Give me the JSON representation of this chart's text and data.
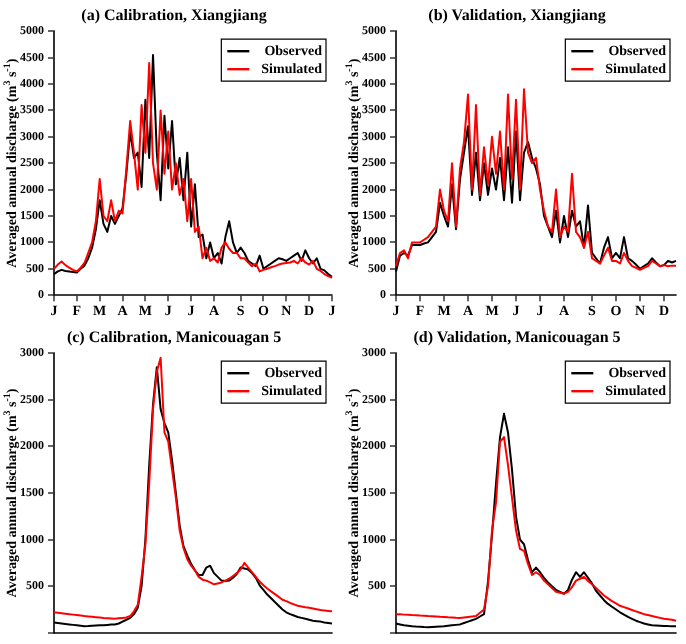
{
  "chart_data": [
    {
      "type": "line",
      "title": "(a) Calibration, Xiangjiang",
      "ylabel": "Averaged annual discharge (m$^{3}$ s$^{-1}$)",
      "legend": "top right",
      "categories": [
        "J",
        null,
        null,
        null,
        null,
        null,
        "F",
        null,
        null,
        null,
        null,
        null,
        "M",
        null,
        null,
        null,
        null,
        null,
        "A",
        null,
        null,
        null,
        null,
        null,
        "M",
        null,
        null,
        null,
        null,
        null,
        "J",
        null,
        null,
        null,
        null,
        null,
        "J",
        null,
        null,
        null,
        null,
        null,
        "A",
        null,
        null,
        null,
        null,
        null,
        null,
        "S",
        null,
        null,
        null,
        null,
        null,
        "O",
        null,
        null,
        null,
        null,
        null,
        "N",
        null,
        null,
        null,
        null,
        null,
        "D",
        null,
        null,
        null,
        null,
        null,
        "J"
      ],
      "ylim": [
        0,
        5000
      ],
      "yticks": [
        0,
        500,
        1000,
        1500,
        2000,
        2500,
        3000,
        3500,
        4000,
        4500,
        5000
      ],
      "series": [
        {
          "name": "Observed",
          "color": "#000000",
          "values": [
            400,
            450,
            480,
            460,
            450,
            440,
            430,
            500,
            560,
            700,
            900,
            1250,
            1800,
            1350,
            1200,
            1500,
            1350,
            1500,
            1650,
            2300,
            3100,
            2600,
            2700,
            2050,
            3700,
            2600,
            4550,
            2700,
            1800,
            3400,
            2400,
            3300,
            2100,
            2600,
            1800,
            2700,
            1300,
            2100,
            1100,
            1150,
            700,
            1000,
            700,
            800,
            600,
            1100,
            1400,
            1000,
            800,
            900,
            800,
            650,
            600,
            550,
            750,
            500,
            550,
            600,
            650,
            700,
            680,
            650,
            700,
            750,
            800,
            650,
            850,
            700,
            600,
            700,
            500,
            470,
            400,
            350
          ]
        },
        {
          "name": "Simulated",
          "color": "#ff0000",
          "values": [
            500,
            580,
            640,
            570,
            520,
            480,
            450,
            520,
            610,
            800,
            1000,
            1400,
            2200,
            1500,
            1400,
            1800,
            1400,
            1600,
            1550,
            2400,
            3300,
            2700,
            2000,
            3600,
            2700,
            4400,
            2500,
            2000,
            3500,
            2300,
            3100,
            2000,
            2500,
            1900,
            2200,
            1400,
            2200,
            1200,
            1300,
            700,
            900,
            650,
            700,
            620,
            900,
            1000,
            880,
            800,
            800,
            700,
            700,
            620,
            550,
            600,
            450,
            480,
            500,
            530,
            550,
            580,
            600,
            610,
            620,
            650,
            600,
            700,
            620,
            580,
            650,
            500,
            460,
            400,
            360,
            330
          ]
        }
      ]
    },
    {
      "type": "line",
      "title": "(b) Validation, Xiangjiang",
      "ylabel": "Averaged annual discharge (m$^{3}$ s$^{-1}$)",
      "legend": "top right",
      "categories": [
        "J",
        null,
        null,
        null,
        null,
        null,
        "F",
        null,
        null,
        null,
        null,
        null,
        "M",
        null,
        null,
        null,
        null,
        null,
        "A",
        null,
        null,
        null,
        null,
        null,
        "M",
        null,
        null,
        null,
        null,
        null,
        "J",
        null,
        null,
        null,
        null,
        null,
        "J",
        null,
        null,
        null,
        null,
        null,
        "A",
        null,
        null,
        null,
        null,
        null,
        null,
        "S",
        null,
        null,
        null,
        null,
        null,
        "O",
        null,
        null,
        null,
        null,
        null,
        "N",
        null,
        null,
        null,
        null,
        null,
        "D",
        null,
        null,
        null
      ],
      "ylim": [
        0,
        5000
      ],
      "yticks": [
        0,
        500,
        1000,
        1500,
        2000,
        2500,
        3000,
        3500,
        4000,
        4500,
        5000
      ],
      "series": [
        {
          "name": "Observed",
          "color": "#000000",
          "values": [
            450,
            750,
            800,
            750,
            950,
            950,
            950,
            980,
            1000,
            1100,
            1200,
            1750,
            1500,
            1300,
            2100,
            1250,
            2200,
            2700,
            3200,
            1900,
            2700,
            1800,
            2500,
            1900,
            2400,
            2000,
            2600,
            1800,
            2800,
            1750,
            3100,
            1800,
            2700,
            2900,
            2600,
            2400,
            2100,
            1500,
            1300,
            1100,
            1600,
            1000,
            1500,
            1100,
            1600,
            1300,
            1400,
            900,
            1700,
            800,
            700,
            600,
            900,
            1100,
            700,
            800,
            700,
            1100,
            700,
            650,
            580,
            500,
            550,
            600,
            700,
            620,
            550,
            570,
            650,
            620,
            650
          ]
        },
        {
          "name": "Simulated",
          "color": "#ff0000",
          "values": [
            550,
            800,
            850,
            700,
            1000,
            1000,
            1000,
            1050,
            1100,
            1200,
            1300,
            2000,
            1600,
            1400,
            2500,
            1300,
            2400,
            2900,
            3800,
            2000,
            3600,
            1900,
            2800,
            2100,
            3000,
            2300,
            3100,
            2000,
            3800,
            2200,
            3700,
            2000,
            3900,
            2700,
            2500,
            2600,
            2000,
            1600,
            1300,
            1200,
            2000,
            1100,
            1300,
            1200,
            2300,
            1200,
            1100,
            900,
            1200,
            700,
            650,
            600,
            750,
            900,
            650,
            650,
            600,
            800,
            650,
            550,
            520,
            480,
            520,
            550,
            650,
            600,
            550,
            570,
            550,
            560,
            560
          ]
        }
      ]
    },
    {
      "type": "line",
      "title": "(c) Calibration, Manicouagan 5",
      "ylabel": "Averaged annual discharge (m$^{3}$ s$^{-1}$)",
      "legend": "top right",
      "tick_labels": "y",
      "categories": [
        null,
        null,
        null,
        null,
        null,
        null,
        null,
        null,
        null,
        null,
        null,
        null,
        null,
        null,
        null,
        null,
        null,
        null,
        null,
        null,
        null,
        null,
        null,
        null,
        null,
        null,
        null,
        null,
        null,
        null,
        null,
        null,
        null,
        null,
        null,
        null,
        null,
        null,
        null,
        null,
        null,
        null,
        null,
        null,
        null,
        null,
        null,
        null,
        null,
        null,
        null,
        null,
        null,
        null,
        null,
        null,
        null,
        null,
        null,
        null,
        null,
        null,
        null,
        null,
        null,
        null,
        null,
        null,
        null,
        null,
        null,
        null,
        null,
        null
      ],
      "ylim": [
        0,
        3000
      ],
      "yticks": [
        {
          "value": 0,
          "label": null
        },
        500,
        1000,
        1500,
        2000,
        2500,
        3000
      ],
      "series": [
        {
          "name": "Observed",
          "color": "#000000",
          "values": [
            110,
            105,
            100,
            95,
            90,
            85,
            80,
            75,
            70,
            72,
            75,
            78,
            80,
            82,
            85,
            88,
            90,
            100,
            120,
            140,
            160,
            200,
            270,
            500,
            1000,
            1800,
            2450,
            2850,
            2400,
            2250,
            2150,
            1850,
            1500,
            1150,
            930,
            830,
            740,
            670,
            620,
            620,
            700,
            720,
            640,
            600,
            560,
            555,
            560,
            590,
            630,
            700,
            690,
            680,
            640,
            590,
            510,
            460,
            410,
            370,
            330,
            290,
            250,
            220,
            200,
            185,
            170,
            160,
            150,
            140,
            130,
            125,
            120,
            110,
            105,
            100
          ]
        },
        {
          "name": "Simulated",
          "color": "#ff0000",
          "values": [
            220,
            215,
            210,
            205,
            200,
            195,
            190,
            185,
            180,
            176,
            172,
            168,
            164,
            160,
            157,
            154,
            150,
            155,
            160,
            165,
            180,
            230,
            300,
            600,
            950,
            1600,
            2400,
            2800,
            2950,
            2150,
            2050,
            1750,
            1450,
            1100,
            910,
            790,
            720,
            670,
            600,
            570,
            560,
            540,
            520,
            530,
            540,
            560,
            580,
            610,
            640,
            680,
            750,
            700,
            650,
            600,
            550,
            510,
            475,
            445,
            415,
            385,
            355,
            340,
            320,
            305,
            290,
            283,
            275,
            268,
            260,
            252,
            245,
            240,
            235,
            230
          ]
        }
      ]
    },
    {
      "type": "line",
      "title": "(d) Validation, Manicouagan 5",
      "ylabel": "Averaged annual discharge (m$^{3}$ s$^{-1}$)",
      "legend": "top right",
      "tick_labels": "y",
      "categories": [
        null,
        null,
        null,
        null,
        null,
        null,
        null,
        null,
        null,
        null,
        null,
        null,
        null,
        null,
        null,
        null,
        null,
        null,
        null,
        null,
        null,
        null,
        null,
        null,
        null,
        null,
        null,
        null,
        null,
        null,
        null,
        null,
        null,
        null,
        null,
        null,
        null,
        null,
        null,
        null,
        null,
        null,
        null,
        null,
        null,
        null,
        null,
        null,
        null,
        null,
        null,
        null,
        null,
        null,
        null,
        null,
        null,
        null,
        null,
        null,
        null,
        null,
        null,
        null,
        null,
        null,
        null,
        null,
        null,
        null,
        null
      ],
      "ylim": [
        0,
        3000
      ],
      "yticks": [
        {
          "value": 0,
          "label": null
        },
        500,
        1000,
        1500,
        2000,
        2500,
        3000
      ],
      "series": [
        {
          "name": "Observed",
          "color": "#000000",
          "values": [
            100,
            90,
            80,
            75,
            70,
            67,
            65,
            62,
            60,
            63,
            66,
            68,
            70,
            75,
            80,
            85,
            90,
            105,
            120,
            135,
            150,
            175,
            200,
            550,
            1050,
            1600,
            2100,
            2350,
            2150,
            1750,
            1250,
            1000,
            950,
            780,
            650,
            700,
            650,
            590,
            540,
            500,
            460,
            440,
            420,
            460,
            570,
            650,
            600,
            650,
            590,
            530,
            450,
            400,
            350,
            310,
            280,
            250,
            220,
            195,
            170,
            150,
            130,
            115,
            100,
            90,
            80,
            78,
            76,
            74,
            72,
            71,
            70
          ]
        },
        {
          "name": "Simulated",
          "color": "#ff0000",
          "values": [
            200,
            198,
            195,
            193,
            190,
            188,
            185,
            183,
            180,
            178,
            175,
            172,
            170,
            167,
            165,
            162,
            160,
            165,
            170,
            175,
            180,
            215,
            250,
            500,
            1100,
            1400,
            2050,
            2100,
            1800,
            1450,
            1100,
            900,
            880,
            740,
            620,
            650,
            620,
            560,
            520,
            480,
            440,
            430,
            420,
            440,
            490,
            560,
            580,
            600,
            555,
            520,
            480,
            440,
            400,
            370,
            340,
            315,
            290,
            275,
            260,
            245,
            230,
            215,
            200,
            190,
            180,
            170,
            160,
            150,
            145,
            140,
            130
          ]
        }
      ]
    }
  ]
}
